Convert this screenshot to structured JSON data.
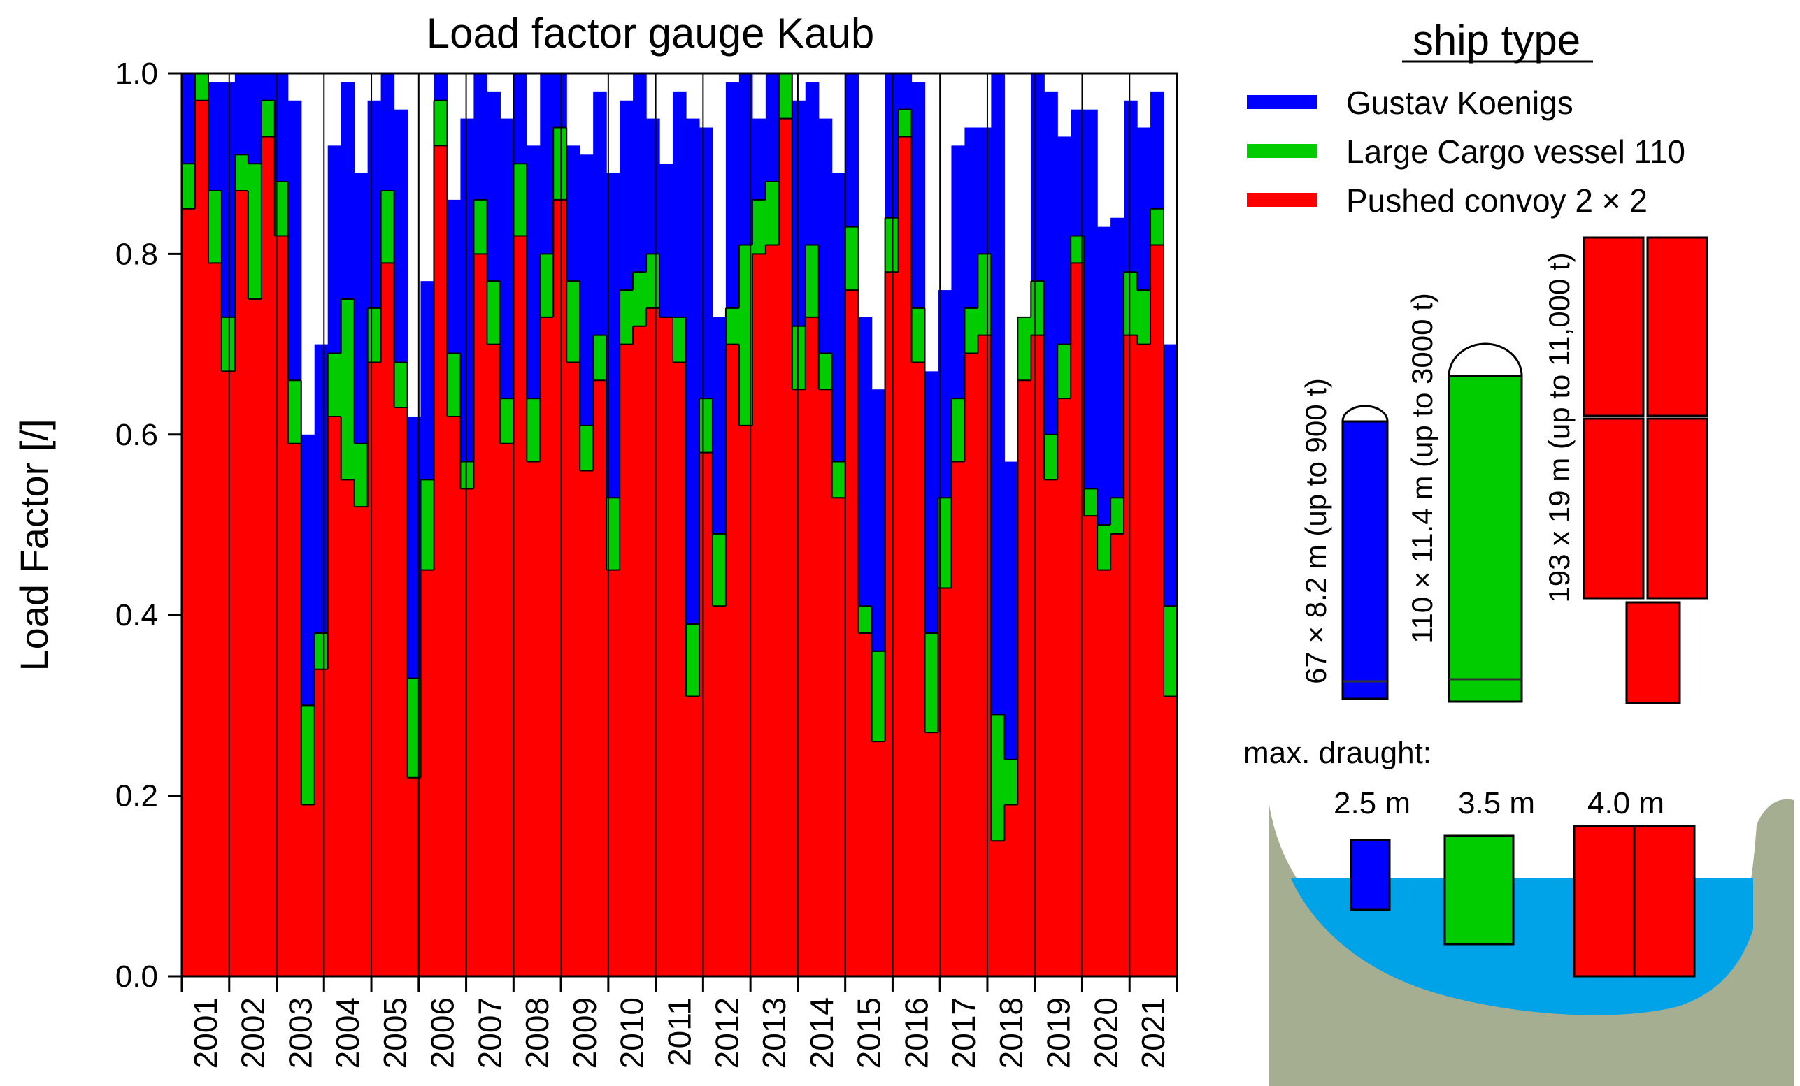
{
  "chart_data": {
    "type": "bar",
    "stacked": true,
    "title": "Load factor gauge Kaub",
    "ylabel": "Load Factor [/]",
    "xlabel": "",
    "ylim": [
      0,
      1
    ],
    "yticks": [
      "0.0",
      "0.2",
      "0.4",
      "0.6",
      "0.8",
      "1.0"
    ],
    "categories": [
      "2001",
      "2002",
      "2003",
      "2004",
      "2005",
      "2006",
      "2007",
      "2008",
      "2009",
      "2010",
      "2011",
      "2012",
      "2013",
      "2014",
      "2015",
      "2016",
      "2017",
      "2018",
      "2019",
      "2020",
      "2021"
    ],
    "months_per_year": 12,
    "series": [
      {
        "name": "Pushed convoy 2 × 2",
        "color": "#ff0000",
        "values": [
          [
            0.85,
            0.97,
            0.79,
            0.67,
            0.87,
            0.75,
            0.93,
            0.82
          ],
          [
            0.59,
            0.19,
            0.34,
            0.62,
            0.55,
            0.52
          ],
          [
            0.68,
            0.79,
            0.63,
            0.22,
            0.45,
            0.92
          ],
          [
            0.62,
            0.54,
            0.8,
            0.7,
            0.59,
            0.82
          ],
          [
            0.57,
            0.73,
            0.86,
            0.68,
            0.56,
            0.66
          ],
          [
            0.45,
            0.7,
            0.72,
            0.74,
            0.73,
            0.68
          ],
          [
            0.31,
            0.58,
            0.41,
            0.7,
            0.61,
            0.8
          ],
          [
            0.81,
            0.95,
            0.65,
            0.73,
            0.65,
            0.53
          ],
          [
            0.76,
            0.38,
            0.26,
            0.78,
            0.93,
            0.68
          ],
          [
            0.27,
            0.43,
            0.57,
            0.69,
            0.71,
            0.15
          ],
          [
            0.19,
            0.66,
            0.71,
            0.55,
            0.64,
            0.79
          ],
          [
            0.51,
            0.45,
            0.49,
            0.71,
            0.7,
            0.81,
            0.31
          ]
        ]
      },
      {
        "name": "Large Cargo vessel 110",
        "color": "#00cc00",
        "values": [
          [
            0.9,
            1.0,
            0.87,
            0.73,
            0.91,
            0.9,
            0.97,
            0.88
          ],
          [
            0.66,
            0.3,
            0.38,
            0.69,
            0.75,
            0.59
          ],
          [
            0.74,
            0.87,
            0.68,
            0.33,
            0.55,
            0.97
          ],
          [
            0.69,
            0.57,
            0.86,
            0.77,
            0.64,
            0.9
          ],
          [
            0.64,
            0.8,
            0.94,
            0.77,
            0.61,
            0.71
          ],
          [
            0.53,
            0.76,
            0.78,
            0.8,
            0.73,
            0.73
          ],
          [
            0.39,
            0.64,
            0.49,
            0.74,
            0.81,
            0.86
          ],
          [
            0.88,
            1.0,
            0.72,
            0.81,
            0.69,
            0.57
          ],
          [
            0.83,
            0.41,
            0.36,
            0.84,
            0.96,
            0.74
          ],
          [
            0.38,
            0.53,
            0.64,
            0.74,
            0.8,
            0.29
          ],
          [
            0.24,
            0.73,
            0.77,
            0.6,
            0.7,
            0.82
          ],
          [
            0.54,
            0.5,
            0.53,
            0.78,
            0.76,
            0.85,
            0.41
          ]
        ]
      },
      {
        "name": "Gustav Koenigs",
        "color": "#0000ff",
        "values": [
          [
            1.0,
            1.0,
            0.99,
            0.99,
            1.0,
            1.0,
            1.0,
            1.0
          ],
          [
            0.97,
            0.6,
            0.7,
            0.92,
            0.99,
            0.89
          ],
          [
            0.97,
            1.0,
            0.96,
            0.62,
            0.77,
            1.0
          ],
          [
            0.86,
            0.95,
            1.0,
            0.98,
            0.95,
            1.0
          ],
          [
            0.92,
            1.0,
            1.0,
            0.92,
            0.91,
            0.98
          ],
          [
            0.89,
            0.97,
            1.0,
            0.95,
            0.9,
            0.98
          ],
          [
            0.95,
            0.94,
            0.73,
            0.99,
            1.0,
            0.95
          ],
          [
            1.0,
            1.0,
            0.97,
            0.99,
            0.95,
            0.89
          ],
          [
            1.0,
            0.73,
            0.65,
            1.0,
            1.0,
            0.99
          ],
          [
            0.67,
            0.76,
            0.92,
            0.94,
            0.94,
            1.0
          ],
          [
            0.57,
            0.49,
            1.0,
            0.98,
            0.93,
            0.96
          ],
          [
            0.96,
            0.83,
            0.84,
            0.97,
            0.94,
            0.98,
            0.7
          ]
        ]
      }
    ],
    "values_note": "Stacked cumulative load factor per sampled period; series listed bottom to top"
  },
  "legend": {
    "title": "ship type",
    "entries": [
      {
        "label": "Gustav Koenigs",
        "color": "#0000ff"
      },
      {
        "label": "Large Cargo vessel 110",
        "color": "#00cc00"
      },
      {
        "label": "Pushed convoy 2 × 2",
        "color": "#ff0000"
      }
    ]
  },
  "ships": {
    "gustav_label": "67 × 8.2 m (up to 900 t)",
    "cargo_label": "110 × 11.4 m (up to 3000 t)",
    "convoy_label": "193 x 19 m (up to 11,000 t)"
  },
  "draught": {
    "title": "max. draught:",
    "gustav": "2.5 m",
    "cargo": "3.5 m",
    "convoy": "4.0 m"
  },
  "colors": {
    "blue": "#0000ff",
    "green": "#00cc00",
    "red": "#ff0000",
    "water": "#00a2e8",
    "bank": "#a5ae90"
  }
}
